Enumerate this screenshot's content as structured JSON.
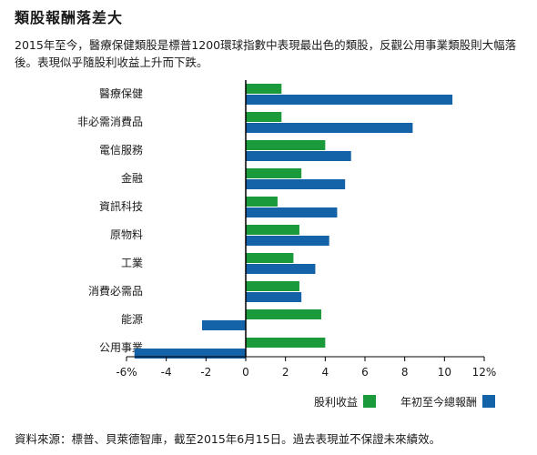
{
  "title": "類股報酬落差大",
  "subtitle": "2015年至今，醫療保健類股是標普1200環球指數中表現最出色的類股，反觀公用事業類股則大幅落後。表現似乎隨股利收益上升而下跌。",
  "source": "資料來源：標普、貝萊德智庫，截至2015年6月15日。過去表現並不保證未來績效。",
  "colors": {
    "dividend": "#1a9a3a",
    "return": "#1462a8"
  },
  "chart_data": {
    "type": "bar",
    "orientation": "horizontal",
    "categories": [
      "醫療保健",
      "非必需消費品",
      "電信服務",
      "金融",
      "資訊科技",
      "原物料",
      "工業",
      "消費必需品",
      "能源",
      "公用事業"
    ],
    "series": [
      {
        "name": "股利收益",
        "values": [
          1.8,
          1.8,
          4.0,
          2.8,
          1.6,
          2.7,
          2.4,
          2.7,
          3.8,
          4.0
        ]
      },
      {
        "name": "年初至今總報酬",
        "values": [
          10.4,
          8.4,
          5.3,
          5.0,
          4.6,
          4.2,
          3.5,
          2.8,
          -2.2,
          -5.6
        ]
      }
    ],
    "x_ticks": [
      "-6%",
      "-4",
      "-2",
      "0",
      "2",
      "4",
      "6",
      "8",
      "10",
      "12%"
    ],
    "x_tick_values": [
      -6,
      -4,
      -2,
      0,
      2,
      4,
      6,
      8,
      10,
      12
    ],
    "xlim": [
      -6,
      12
    ],
    "grid": false,
    "legend": "bottom-right"
  }
}
